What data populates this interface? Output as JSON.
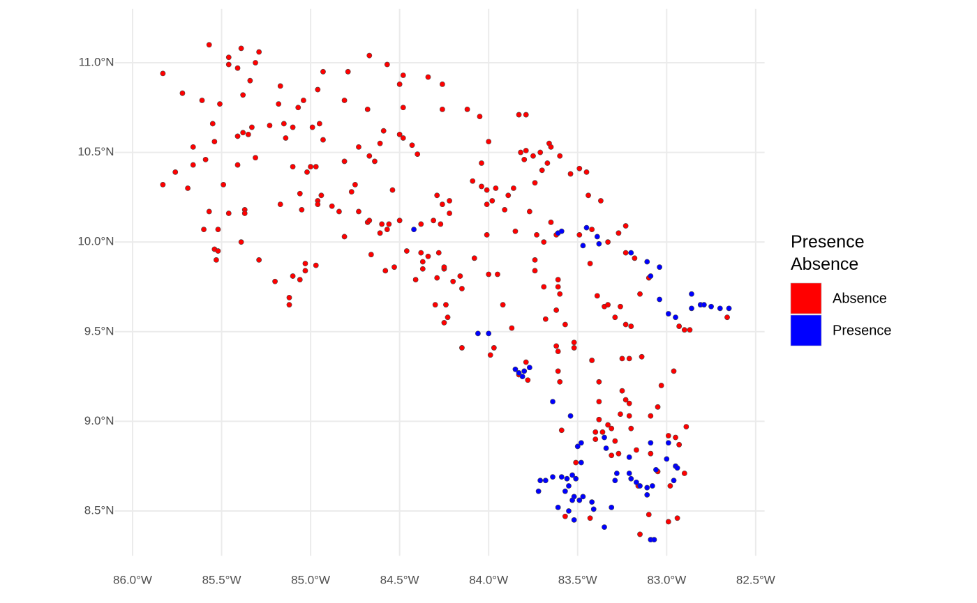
{
  "chart_data": {
    "type": "scatter",
    "legend_title": "Presence\nAbsence",
    "legend_position": "right",
    "grid": true,
    "xlim": [
      -86.1,
      -82.45
    ],
    "ylim": [
      8.25,
      11.3
    ],
    "xticks": [
      {
        "value": -86.0,
        "label": "86.0°W"
      },
      {
        "value": -85.5,
        "label": "85.5°W"
      },
      {
        "value": -85.0,
        "label": "85.0°W"
      },
      {
        "value": -84.5,
        "label": "84.5°W"
      },
      {
        "value": -84.0,
        "label": "84.0°W"
      },
      {
        "value": -83.5,
        "label": "83.5°W"
      },
      {
        "value": -83.0,
        "label": "83.0°W"
      },
      {
        "value": -82.5,
        "label": "82.5°W"
      }
    ],
    "yticks": [
      {
        "value": 8.5,
        "label": "8.5°N"
      },
      {
        "value": 9.0,
        "label": "9.0°N"
      },
      {
        "value": 9.5,
        "label": "9.5°N"
      },
      {
        "value": 10.0,
        "label": "10.0°N"
      },
      {
        "value": 10.5,
        "label": "10.5°N"
      },
      {
        "value": 11.0,
        "label": "11.0°N"
      }
    ],
    "series": [
      {
        "name": "Absence",
        "color": "#ff0000",
        "x": [
          -85.83,
          -85.72,
          -85.57,
          -85.46,
          -85.39,
          -85.29,
          -85.31,
          -85.46,
          -85.41,
          -85.34,
          -85.38,
          -85.17,
          -85.61,
          -85.51,
          -85.18,
          -85.07,
          -85.04,
          -84.96,
          -84.93,
          -84.79,
          -84.67,
          -84.57,
          -84.48,
          -84.5,
          -84.34,
          -84.26,
          -84.48,
          -84.26,
          -84.12,
          -84.05,
          -83.83,
          -83.79,
          -84.68,
          -84.81,
          -85.55,
          -85.54,
          -85.66,
          -85.59,
          -85.66,
          -85.76,
          -85.83,
          -85.69,
          -85.49,
          -85.41,
          -85.41,
          -85.38,
          -85.35,
          -85.33,
          -85.23,
          -85.15,
          -85.14,
          -85.31,
          -85.1,
          -85.0,
          -84.97,
          -85.02,
          -85.1,
          -84.99,
          -84.95,
          -84.93,
          -85.06,
          -85.05,
          -85.17,
          -84.94,
          -84.96,
          -84.96,
          -84.88,
          -85.57,
          -85.46,
          -85.37,
          -85.37,
          -85.6,
          -85.52,
          -85.39,
          -85.54,
          -85.52,
          -85.53,
          -85.29,
          -85.2,
          -85.1,
          -85.12,
          -85.12,
          -85.03,
          -85.06,
          -85.03,
          -84.97,
          -84.84,
          -84.81,
          -84.81,
          -84.77,
          -84.75,
          -84.73,
          -84.73,
          -84.68,
          -84.67,
          -84.6,
          -84.56,
          -84.5,
          -84.67,
          -84.64,
          -84.61,
          -84.59,
          -84.5,
          -84.48,
          -84.43,
          -84.4,
          -84.54,
          -84.66,
          -84.61,
          -84.57,
          -84.46,
          -84.58,
          -84.53,
          -84.38,
          -84.31,
          -84.38,
          -84.34,
          -84.37,
          -84.37,
          -84.41,
          -84.28,
          -84.25,
          -84.29,
          -84.25,
          -84.2,
          -84.16,
          -84.15,
          -84.08,
          -84.29,
          -84.26,
          -84.22,
          -84.22,
          -84.27,
          -84.3,
          -84.24,
          -84.25,
          -84.23,
          -84.15,
          -84.09,
          -84.04,
          -84.04,
          -84.01,
          -84.0,
          -84.01,
          -83.98,
          -83.96,
          -83.91,
          -83.89,
          -83.86,
          -84.01,
          -84.0,
          -83.95,
          -83.92,
          -83.87,
          -83.97,
          -83.99,
          -83.82,
          -83.79,
          -83.8,
          -83.77,
          -83.85,
          -83.75,
          -83.71,
          -83.74,
          -83.7,
          -83.67,
          -83.66,
          -83.65,
          -83.6,
          -83.65,
          -83.73,
          -83.69,
          -83.62,
          -83.74,
          -83.74,
          -83.69,
          -83.61,
          -83.61,
          -83.6,
          -83.68,
          -83.62,
          -83.57,
          -83.52,
          -83.62,
          -83.61,
          -83.52,
          -83.61,
          -83.6,
          -83.54,
          -83.49,
          -83.45,
          -83.44,
          -83.37,
          -83.49,
          -83.42,
          -83.33,
          -83.43,
          -83.27,
          -83.23,
          -83.39,
          -83.35,
          -83.33,
          -83.26,
          -83.29,
          -83.23,
          -83.2,
          -83.23,
          -83.18,
          -83.15,
          -83.1,
          -83.42,
          -83.38,
          -83.25,
          -83.21,
          -83.14,
          -83.38,
          -83.25,
          -83.23,
          -83.21,
          -83.26,
          -83.21,
          -83.38,
          -83.33,
          -83.31,
          -83.36,
          -83.2,
          -83.4,
          -83.29,
          -83.59,
          -83.4,
          -83.09,
          -83.05,
          -83.03,
          -82.96,
          -82.93,
          -82.9,
          -82.87,
          -82.66,
          -82.99,
          -82.95,
          -82.89,
          -82.93,
          -83.09,
          -83.05,
          -83.17,
          -83.16,
          -82.98,
          -82.9,
          -83.27,
          -83.31,
          -83.51,
          -83.57,
          -83.43,
          -83.1,
          -82.99,
          -82.94,
          -83.15,
          -83.83,
          -83.79,
          -83.78
        ],
        "y": [
          10.94,
          10.83,
          11.1,
          11.03,
          11.08,
          11.06,
          11.0,
          10.99,
          10.97,
          10.9,
          10.82,
          10.87,
          10.79,
          10.77,
          10.77,
          10.75,
          10.79,
          10.85,
          10.95,
          10.95,
          11.04,
          10.99,
          10.93,
          10.88,
          10.92,
          10.88,
          10.75,
          10.74,
          10.74,
          10.7,
          10.71,
          10.71,
          10.74,
          10.79,
          10.66,
          10.56,
          10.53,
          10.46,
          10.43,
          10.39,
          10.32,
          10.3,
          10.32,
          10.43,
          10.59,
          10.61,
          10.6,
          10.64,
          10.65,
          10.66,
          10.58,
          10.47,
          10.42,
          10.42,
          10.42,
          10.39,
          10.64,
          10.64,
          10.66,
          10.57,
          10.27,
          10.18,
          10.21,
          10.26,
          10.23,
          10.21,
          10.2,
          10.17,
          10.16,
          10.18,
          10.16,
          10.07,
          10.07,
          10.0,
          9.96,
          9.95,
          9.9,
          9.9,
          9.78,
          9.81,
          9.69,
          9.65,
          9.84,
          9.79,
          9.88,
          9.87,
          10.17,
          10.03,
          10.45,
          10.28,
          10.32,
          10.17,
          10.53,
          10.11,
          10.12,
          10.1,
          10.1,
          10.12,
          10.48,
          10.45,
          10.55,
          10.62,
          10.6,
          10.58,
          10.54,
          10.49,
          10.29,
          9.93,
          10.05,
          10.07,
          9.95,
          9.84,
          9.86,
          10.1,
          10.12,
          9.94,
          9.92,
          9.89,
          9.85,
          9.79,
          9.94,
          9.85,
          9.8,
          9.86,
          9.78,
          9.81,
          9.74,
          9.91,
          10.26,
          10.21,
          10.23,
          10.16,
          10.1,
          9.65,
          9.65,
          9.55,
          9.58,
          9.41,
          10.34,
          10.31,
          10.44,
          10.29,
          10.56,
          10.21,
          10.23,
          10.3,
          10.18,
          10.26,
          10.3,
          10.04,
          9.82,
          9.82,
          9.65,
          9.52,
          9.41,
          9.37,
          10.5,
          10.51,
          10.46,
          10.17,
          10.06,
          10.48,
          10.5,
          10.33,
          10.4,
          10.44,
          10.55,
          10.53,
          10.48,
          10.11,
          10.04,
          10.0,
          10.04,
          9.9,
          9.84,
          9.75,
          9.79,
          9.75,
          9.71,
          9.57,
          9.62,
          9.54,
          9.44,
          9.42,
          9.39,
          9.41,
          9.28,
          9.22,
          10.38,
          10.41,
          10.39,
          10.26,
          10.23,
          10.04,
          10.07,
          10.0,
          9.88,
          10.05,
          10.09,
          9.7,
          9.64,
          9.65,
          9.64,
          9.58,
          9.54,
          9.53,
          9.94,
          9.91,
          9.71,
          9.8,
          9.34,
          9.22,
          9.35,
          9.35,
          9.36,
          9.11,
          9.17,
          9.12,
          9.1,
          9.04,
          9.03,
          9.01,
          8.98,
          8.96,
          8.94,
          8.96,
          8.94,
          8.89,
          8.95,
          8.9,
          9.03,
          9.08,
          9.2,
          9.28,
          9.53,
          9.51,
          9.51,
          9.58,
          8.92,
          8.91,
          8.97,
          8.87,
          8.82,
          8.72,
          8.84,
          8.64,
          8.64,
          8.71,
          8.82,
          8.81,
          8.77,
          8.47,
          8.46,
          8.48,
          8.44,
          8.46,
          8.37,
          9.26,
          9.33,
          9.23
        ]
      },
      {
        "name": "Presence",
        "color": "#0000ff",
        "x": [
          -84.42,
          -83.61,
          -83.59,
          -83.45,
          -83.39,
          -83.38,
          -83.47,
          -83.2,
          -83.11,
          -83.04,
          -83.09,
          -83.04,
          -82.99,
          -82.95,
          -82.86,
          -82.86,
          -82.81,
          -82.79,
          -82.75,
          -82.7,
          -82.65,
          -84.06,
          -84.0,
          -83.85,
          -83.83,
          -83.8,
          -83.77,
          -83.81,
          -83.64,
          -83.54,
          -83.5,
          -83.48,
          -83.48,
          -83.35,
          -83.34,
          -83.21,
          -83.09,
          -82.99,
          -83.0,
          -83.06,
          -82.95,
          -82.94,
          -83.28,
          -83.29,
          -83.21,
          -83.2,
          -83.17,
          -83.15,
          -83.11,
          -83.08,
          -83.11,
          -82.96,
          -83.71,
          -83.68,
          -83.64,
          -83.59,
          -83.56,
          -83.53,
          -83.51,
          -83.55,
          -83.72,
          -83.57,
          -83.52,
          -83.49,
          -83.53,
          -83.47,
          -83.42,
          -83.41,
          -83.61,
          -83.55,
          -83.31,
          -83.52,
          -83.35,
          -83.09,
          -83.07
        ],
        "y": [
          10.07,
          10.05,
          10.06,
          10.08,
          10.03,
          9.99,
          9.98,
          9.94,
          9.89,
          9.86,
          9.81,
          9.68,
          9.6,
          9.58,
          9.71,
          9.63,
          9.65,
          9.65,
          9.64,
          9.63,
          9.63,
          9.49,
          9.49,
          9.29,
          9.27,
          9.28,
          9.3,
          9.25,
          9.11,
          9.03,
          8.86,
          8.88,
          8.77,
          8.91,
          8.85,
          8.8,
          8.88,
          8.88,
          8.79,
          8.73,
          8.75,
          8.74,
          8.71,
          8.67,
          8.71,
          8.68,
          8.66,
          8.64,
          8.63,
          8.64,
          8.59,
          8.67,
          8.67,
          8.67,
          8.69,
          8.69,
          8.68,
          8.7,
          8.68,
          8.64,
          8.61,
          8.61,
          8.58,
          8.56,
          8.56,
          8.58,
          8.55,
          8.51,
          8.52,
          8.5,
          8.52,
          8.45,
          8.41,
          8.34,
          8.34
        ]
      }
    ]
  }
}
